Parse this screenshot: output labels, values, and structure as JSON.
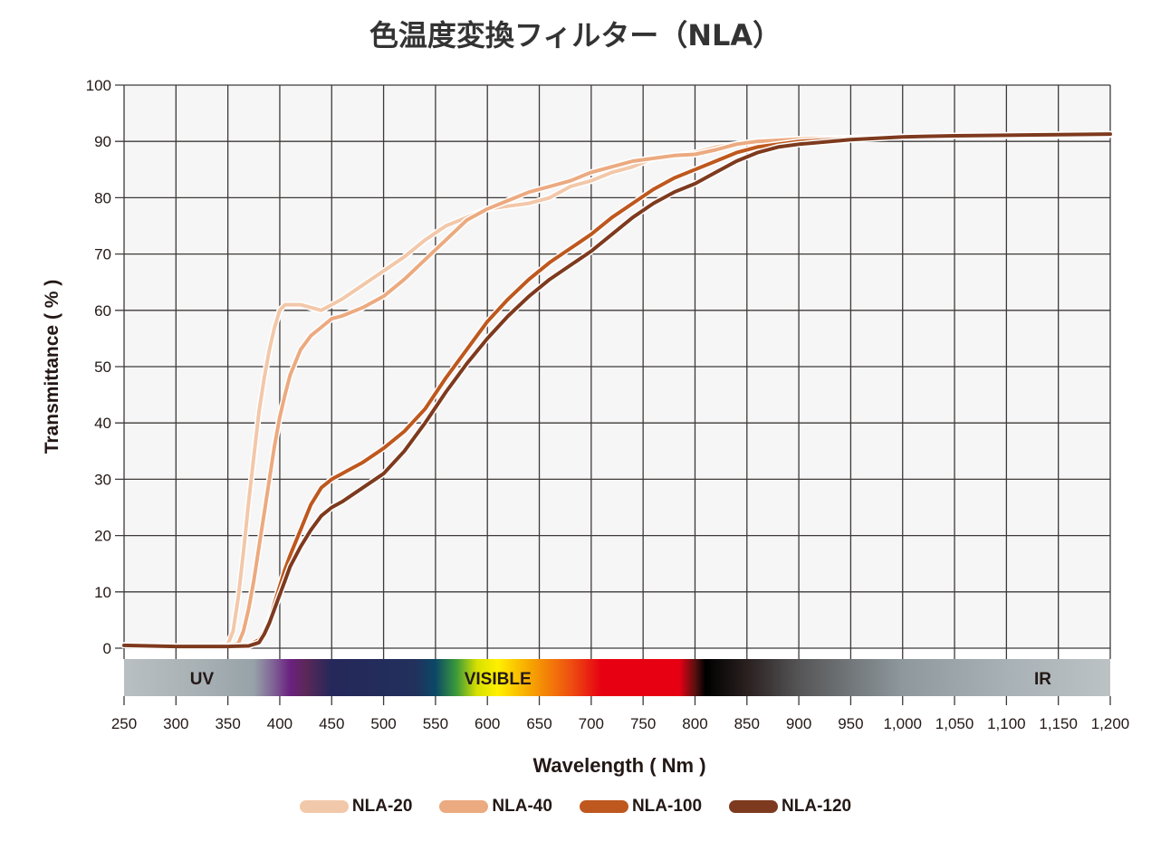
{
  "title": "色温度変換フィルター（NLA）",
  "chart_data": {
    "type": "line",
    "title": "色温度変換フィルター（NLA）",
    "xlabel": "Wavelength ( Nm )",
    "ylabel": "Transmittance ( % )",
    "xlim": [
      250,
      1200
    ],
    "ylim": [
      0,
      100
    ],
    "grid": true,
    "legend_position": "bottom",
    "x_ticks": [
      "250",
      "300",
      "350",
      "400",
      "450",
      "500",
      "550",
      "600",
      "650",
      "700",
      "750",
      "800",
      "850",
      "900",
      "950",
      "1,000",
      "1,050",
      "1,100",
      "1,150",
      "1,200"
    ],
    "y_ticks": [
      "0",
      "10",
      "20",
      "30",
      "40",
      "50",
      "60",
      "70",
      "80",
      "90",
      "100"
    ],
    "spectrum_bands": [
      {
        "label": "UV",
        "center": 325
      },
      {
        "label": "VISIBLE",
        "center": 610
      },
      {
        "label": "IR",
        "center": 1135
      }
    ],
    "series": [
      {
        "name": "NLA-20",
        "color": "#F2C8AA",
        "x": [
          250,
          300,
          340,
          350,
          355,
          360,
          365,
          370,
          375,
          380,
          385,
          390,
          395,
          400,
          405,
          410,
          420,
          430,
          440,
          450,
          460,
          480,
          500,
          520,
          540,
          560,
          580,
          600,
          620,
          640,
          660,
          680,
          700,
          720,
          740,
          760,
          780,
          800,
          820,
          840,
          860,
          880,
          900,
          950,
          1000,
          1050,
          1100,
          1150,
          1200
        ],
        "y": [
          0.5,
          0.3,
          0.4,
          0.7,
          3,
          9,
          17,
          26,
          34,
          42,
          48,
          53,
          57,
          60,
          61,
          61,
          61,
          60.5,
          60,
          61,
          62,
          64.5,
          67,
          69.5,
          72.5,
          75,
          76.5,
          78,
          78.5,
          79,
          80,
          82,
          83,
          84.5,
          85.5,
          87,
          87.5,
          88,
          89,
          89.5,
          90,
          90.2,
          90.4,
          90.6,
          90.8,
          91,
          91,
          91,
          91.2
        ]
      },
      {
        "name": "NLA-40",
        "color": "#ECAA80",
        "x": [
          250,
          300,
          350,
          360,
          365,
          370,
          375,
          380,
          385,
          390,
          395,
          400,
          405,
          410,
          420,
          430,
          440,
          450,
          460,
          480,
          500,
          520,
          540,
          560,
          580,
          600,
          620,
          640,
          660,
          680,
          700,
          720,
          740,
          760,
          780,
          800,
          820,
          840,
          860,
          880,
          900,
          950,
          1000,
          1050,
          1100,
          1150,
          1200
        ],
        "y": [
          0.5,
          0.3,
          0.4,
          0.8,
          3,
          7,
          12,
          18,
          24,
          30,
          36,
          41,
          45,
          48.5,
          53,
          55.5,
          57,
          58.5,
          59,
          60.5,
          62.5,
          65.5,
          69,
          72.5,
          76,
          78,
          79.5,
          81,
          82,
          83,
          84.5,
          85.5,
          86.5,
          87,
          87.5,
          87.7,
          88.5,
          89.5,
          90,
          90.2,
          90.4,
          90.6,
          90.8,
          91,
          91,
          91,
          91.2
        ]
      },
      {
        "name": "NLA-100",
        "color": "#BE581E",
        "x": [
          250,
          300,
          350,
          370,
          380,
          385,
          390,
          395,
          400,
          405,
          410,
          420,
          430,
          440,
          450,
          460,
          480,
          500,
          520,
          540,
          560,
          580,
          600,
          620,
          640,
          660,
          680,
          700,
          720,
          740,
          760,
          780,
          800,
          820,
          840,
          860,
          880,
          900,
          950,
          1000,
          1050,
          1100,
          1150,
          1200
        ],
        "y": [
          0.5,
          0.3,
          0.3,
          0.5,
          1.5,
          3,
          5,
          8,
          11,
          14,
          16.5,
          21,
          25.5,
          28.5,
          30,
          31,
          33,
          35.5,
          38.5,
          42.5,
          48,
          53,
          58,
          62,
          65.5,
          68.5,
          71,
          73.5,
          76.5,
          79,
          81.5,
          83.5,
          85,
          86.5,
          88,
          89,
          89.5,
          90,
          90.5,
          90.8,
          91,
          91.1,
          91.2,
          91.3
        ]
      },
      {
        "name": "NLA-120",
        "color": "#7E3A1E",
        "x": [
          250,
          300,
          350,
          370,
          380,
          385,
          390,
          395,
          400,
          405,
          410,
          420,
          430,
          440,
          450,
          460,
          480,
          500,
          520,
          540,
          560,
          580,
          600,
          620,
          640,
          660,
          680,
          700,
          720,
          740,
          760,
          780,
          800,
          820,
          840,
          860,
          880,
          900,
          950,
          1000,
          1050,
          1100,
          1150,
          1200
        ],
        "y": [
          0.5,
          0.3,
          0.3,
          0.4,
          1,
          2.5,
          4.5,
          7,
          9.5,
          12,
          14.5,
          18,
          21,
          23.5,
          25,
          26,
          28.5,
          31,
          35,
          40,
          45.5,
          50.5,
          55,
          59,
          62.5,
          65.5,
          68,
          70.5,
          73.5,
          76.5,
          79,
          81,
          82.5,
          84.5,
          86.5,
          88,
          89,
          89.5,
          90.3,
          90.8,
          91,
          91.1,
          91.2,
          91.3
        ]
      }
    ]
  },
  "axes": {
    "xlabel": "Wavelength ( Nm )",
    "ylabel": "Transmittance ( % )"
  },
  "legend": [
    {
      "label": "NLA-20",
      "color": "#F2C8AA"
    },
    {
      "label": "NLA-40",
      "color": "#ECAA80"
    },
    {
      "label": "NLA-100",
      "color": "#BE581E"
    },
    {
      "label": "NLA-120",
      "color": "#7E3A1E"
    }
  ]
}
